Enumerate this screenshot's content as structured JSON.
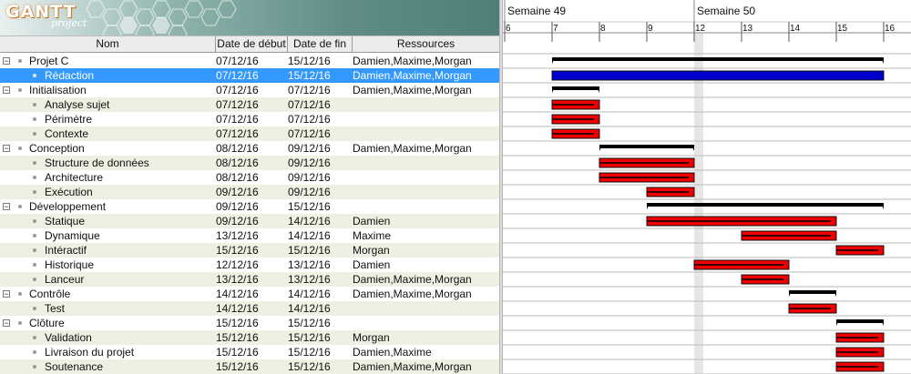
{
  "logo": {
    "title": "GANTT",
    "subtitle": "project"
  },
  "table": {
    "columns": [
      "Nom",
      "Date de début",
      "Date de fin",
      "Ressources"
    ],
    "rows": [
      {
        "name": "Projet C",
        "start": "07/12/16",
        "end": "15/12/16",
        "resources": "Damien,Maxime,Morgan",
        "level": 0,
        "group": true,
        "selected": false
      },
      {
        "name": "Rédaction",
        "start": "07/12/16",
        "end": "15/12/16",
        "resources": "Damien,Maxime,Morgan",
        "level": 1,
        "group": false,
        "selected": true
      },
      {
        "name": "Initialisation",
        "start": "07/12/16",
        "end": "07/12/16",
        "resources": "Damien,Maxime,Morgan",
        "level": 0,
        "group": true,
        "selected": false
      },
      {
        "name": "Analyse sujet",
        "start": "07/12/16",
        "end": "07/12/16",
        "resources": "",
        "level": 1,
        "group": false,
        "selected": false
      },
      {
        "name": "Périmètre",
        "start": "07/12/16",
        "end": "07/12/16",
        "resources": "",
        "level": 1,
        "group": false,
        "selected": false
      },
      {
        "name": "Contexte",
        "start": "07/12/16",
        "end": "07/12/16",
        "resources": "",
        "level": 1,
        "group": false,
        "selected": false
      },
      {
        "name": "Conception",
        "start": "08/12/16",
        "end": "09/12/16",
        "resources": "Damien,Maxime,Morgan",
        "level": 0,
        "group": true,
        "selected": false
      },
      {
        "name": "Structure de données",
        "start": "08/12/16",
        "end": "09/12/16",
        "resources": "",
        "level": 1,
        "group": false,
        "selected": false
      },
      {
        "name": "Architecture",
        "start": "08/12/16",
        "end": "09/12/16",
        "resources": "",
        "level": 1,
        "group": false,
        "selected": false
      },
      {
        "name": "Exécution",
        "start": "09/12/16",
        "end": "09/12/16",
        "resources": "",
        "level": 1,
        "group": false,
        "selected": false
      },
      {
        "name": "Développement",
        "start": "09/12/16",
        "end": "15/12/16",
        "resources": "",
        "level": 0,
        "group": true,
        "selected": false
      },
      {
        "name": "Statique",
        "start": "09/12/16",
        "end": "14/12/16",
        "resources": "Damien",
        "level": 1,
        "group": false,
        "selected": false
      },
      {
        "name": "Dynamique",
        "start": "13/12/16",
        "end": "14/12/16",
        "resources": "Maxime",
        "level": 1,
        "group": false,
        "selected": false
      },
      {
        "name": "Intéractif",
        "start": "15/12/16",
        "end": "15/12/16",
        "resources": "Morgan",
        "level": 1,
        "group": false,
        "selected": false
      },
      {
        "name": "Historique",
        "start": "12/12/16",
        "end": "13/12/16",
        "resources": "Damien",
        "level": 1,
        "group": false,
        "selected": false
      },
      {
        "name": "Lanceur",
        "start": "13/12/16",
        "end": "13/12/16",
        "resources": "Damien,Maxime,Morgan",
        "level": 1,
        "group": false,
        "selected": false
      },
      {
        "name": "Contrôle",
        "start": "14/12/16",
        "end": "14/12/16",
        "resources": "Damien,Maxime,Morgan",
        "level": 0,
        "group": true,
        "selected": false
      },
      {
        "name": "Test",
        "start": "14/12/16",
        "end": "14/12/16",
        "resources": "",
        "level": 1,
        "group": false,
        "selected": false
      },
      {
        "name": "Clôture",
        "start": "15/12/16",
        "end": "15/12/16",
        "resources": "",
        "level": 0,
        "group": true,
        "selected": false
      },
      {
        "name": "Validation",
        "start": "15/12/16",
        "end": "15/12/16",
        "resources": "Morgan",
        "level": 1,
        "group": false,
        "selected": false
      },
      {
        "name": "Livraison du projet",
        "start": "15/12/16",
        "end": "15/12/16",
        "resources": "Damien,Maxime",
        "level": 1,
        "group": false,
        "selected": false
      },
      {
        "name": "Soutenance",
        "start": "15/12/16",
        "end": "15/12/16",
        "resources": "Damien,Maxime,Morgan",
        "level": 1,
        "group": false,
        "selected": false
      }
    ]
  },
  "timeline": {
    "weeks": [
      "Semaine 49",
      "Semaine 50"
    ],
    "days": [
      "6",
      "7",
      "8",
      "9",
      "12",
      "13",
      "14",
      "15",
      "16"
    ]
  },
  "colors": {
    "task_bar": "#ee0000",
    "selected_bar": "#0000cc",
    "summary_bar": "#000000",
    "row_alt": "#eef0e1",
    "selection": "#3399ff"
  }
}
